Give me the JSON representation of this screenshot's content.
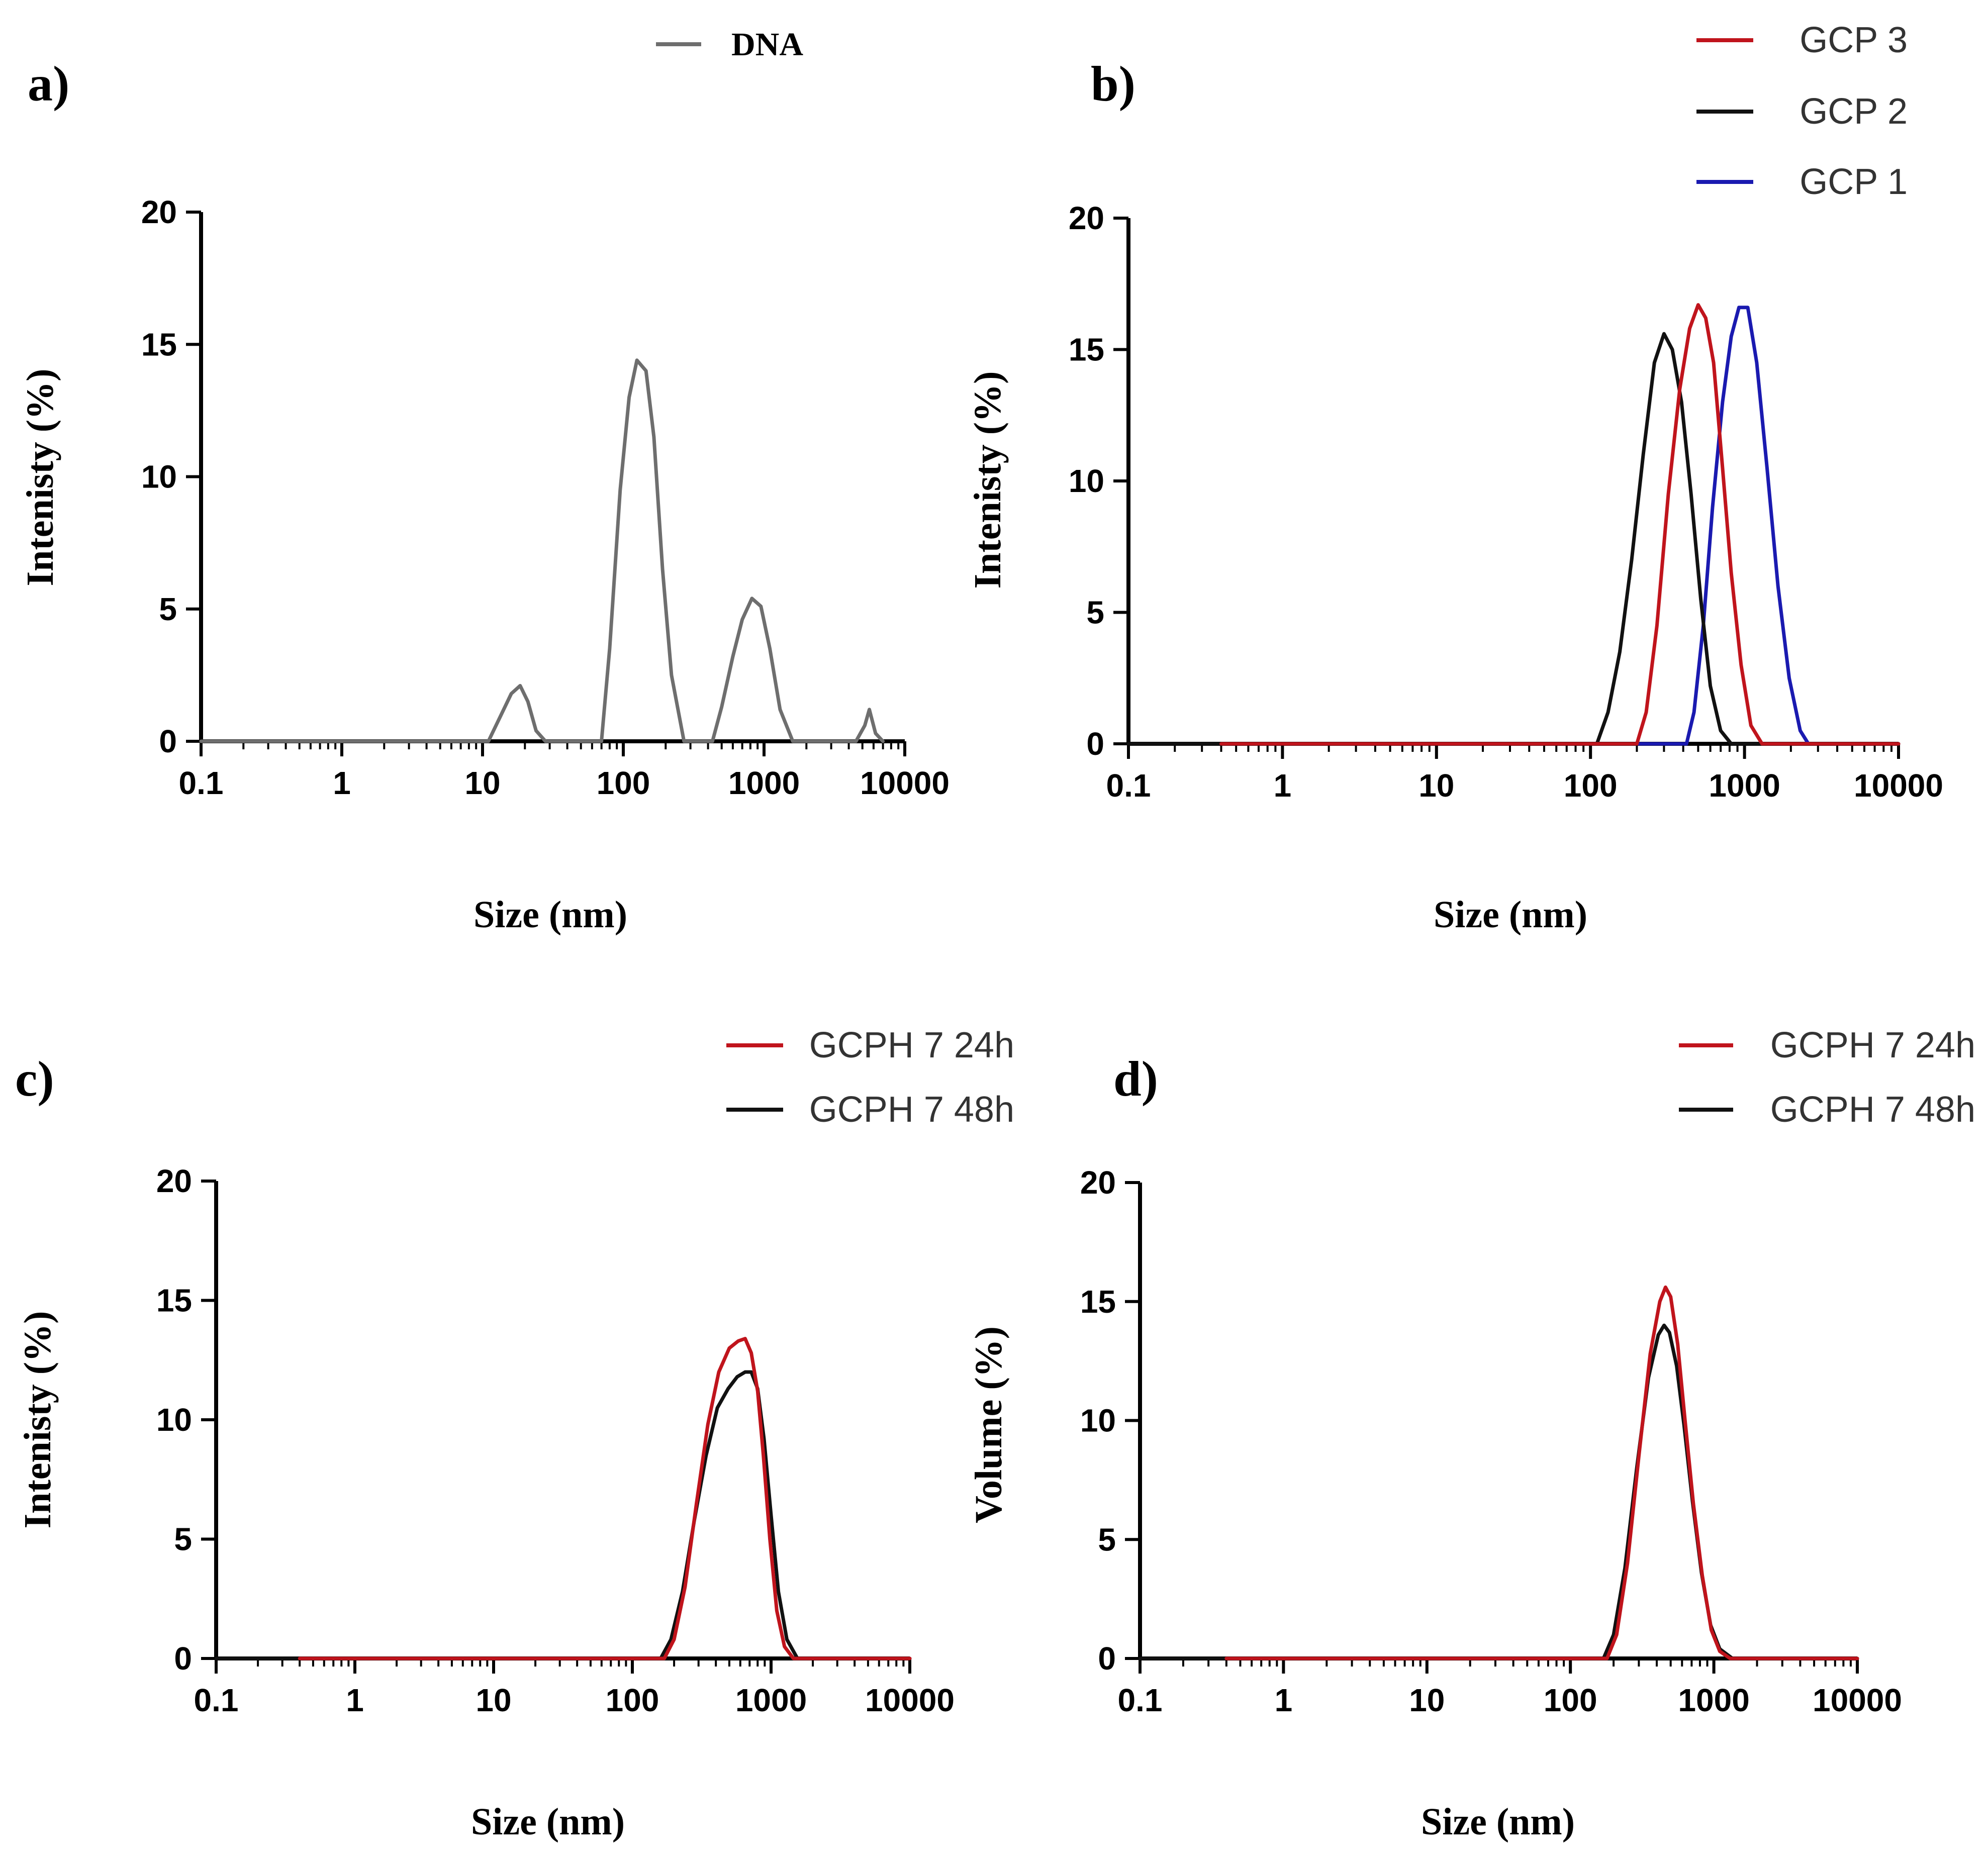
{
  "chart_data": [
    {
      "id": "a",
      "type": "line",
      "panel_label": "a)",
      "xlabel": "Size (nm)",
      "ylabel": "Intenisty (%)",
      "xscale": "log",
      "xlim": [
        0.1,
        10000
      ],
      "ylim": [
        0,
        20
      ],
      "xticks": [
        0.1,
        1,
        10,
        100,
        1000,
        10000
      ],
      "xtick_labels": [
        "0.1",
        "1",
        "10",
        "100",
        "1000",
        "10000"
      ],
      "yticks": [
        0,
        5,
        10,
        15,
        20
      ],
      "ytick_labels": [
        "0",
        "5",
        "10",
        "15",
        "20"
      ],
      "legend_position": "top",
      "legend_font": "serif",
      "series": [
        {
          "name": "DNA",
          "color": "#6e6e6e",
          "x": [
            0.1,
            11,
            13,
            16,
            18.5,
            21,
            24,
            28,
            70,
            80,
            95,
            110,
            125,
            145,
            165,
            190,
            220,
            270,
            300,
            430,
            500,
            600,
            700,
            820,
            950,
            1100,
            1300,
            1600,
            1800,
            4500,
            5200,
            5600,
            6200,
            7000
          ],
          "y": [
            0,
            0,
            0.8,
            1.8,
            2.1,
            1.5,
            0.4,
            0,
            0,
            3.5,
            9.5,
            13,
            14.4,
            14,
            11.5,
            6.5,
            2.5,
            0,
            0,
            0,
            1.3,
            3.2,
            4.6,
            5.4,
            5.1,
            3.5,
            1.2,
            0,
            0,
            0,
            0.6,
            1.2,
            0.3,
            0
          ]
        }
      ]
    },
    {
      "id": "b",
      "type": "line",
      "panel_label": "b)",
      "xlabel": "Size (nm)",
      "ylabel": "Intenisty (%)",
      "xscale": "log",
      "xlim": [
        0.1,
        10000
      ],
      "ylim": [
        0,
        20
      ],
      "xticks": [
        0.1,
        1,
        10,
        100,
        1000,
        10000
      ],
      "xtick_labels": [
        "0.1",
        "1",
        "10",
        "100",
        "1000",
        "10000"
      ],
      "yticks": [
        0,
        5,
        10,
        15,
        20
      ],
      "ytick_labels": [
        "0",
        "5",
        "10",
        "15",
        "20"
      ],
      "legend_position": "top-right",
      "legend_font": "sans",
      "series": [
        {
          "name": "GCP 3",
          "color": "#c0141c",
          "x": [
            0.4,
            200,
            230,
            270,
            320,
            380,
            440,
            500,
            560,
            630,
            720,
            820,
            950,
            1100,
            1300,
            10000
          ],
          "y": [
            0,
            0,
            1.2,
            4.5,
            9.5,
            13.5,
            15.8,
            16.7,
            16.2,
            14.5,
            10.5,
            6.5,
            3,
            0.7,
            0,
            0
          ]
        },
        {
          "name": "GCP 2",
          "color": "#111111",
          "x": [
            0.1,
            110,
            130,
            155,
            185,
            220,
            260,
            300,
            340,
            390,
            450,
            520,
            600,
            700,
            820,
            10000
          ],
          "y": [
            0,
            0,
            1.2,
            3.5,
            7,
            11,
            14.5,
            15.6,
            15,
            13,
            9.5,
            5.5,
            2.2,
            0.5,
            0,
            0
          ]
        },
        {
          "name": "GCP 1",
          "color": "#1a1ab0",
          "x": [
            0.4,
            420,
            470,
            540,
            620,
            720,
            820,
            920,
            1050,
            1200,
            1400,
            1650,
            1950,
            2300,
            2600,
            10000
          ],
          "y": [
            0,
            0,
            1.2,
            4.5,
            9,
            13,
            15.5,
            16.6,
            16.6,
            14.5,
            10.5,
            6,
            2.5,
            0.5,
            0,
            0
          ]
        }
      ]
    },
    {
      "id": "c",
      "type": "line",
      "panel_label": "c)",
      "xlabel": "Size (nm)",
      "ylabel": "Intenisty (%)",
      "xscale": "log",
      "xlim": [
        0.1,
        10000
      ],
      "ylim": [
        0,
        20
      ],
      "xticks": [
        0.1,
        1,
        10,
        100,
        1000,
        10000
      ],
      "xtick_labels": [
        "0.1",
        "1",
        "10",
        "100",
        "1000",
        "10000"
      ],
      "yticks": [
        0,
        5,
        10,
        15,
        20
      ],
      "ytick_labels": [
        "0",
        "5",
        "10",
        "15",
        "20"
      ],
      "legend_position": "top-right",
      "legend_font": "sans",
      "series": [
        {
          "name": "GCPH 7 24h",
          "color": "#c0141c",
          "x": [
            0.4,
            170,
            200,
            240,
            290,
            350,
            420,
            500,
            580,
            650,
            720,
            800,
            880,
            980,
            1100,
            1250,
            1450,
            10000
          ],
          "y": [
            0,
            0,
            0.8,
            3,
            6.5,
            9.8,
            12,
            13,
            13.3,
            13.4,
            12.8,
            11.2,
            8.5,
            5,
            2,
            0.5,
            0,
            0
          ]
        },
        {
          "name": "GCPH 7 48h",
          "color": "#111111",
          "x": [
            0.1,
            160,
            190,
            230,
            280,
            340,
            410,
            490,
            570,
            650,
            720,
            800,
            890,
            1000,
            1130,
            1300,
            1550,
            10000
          ],
          "y": [
            0,
            0,
            0.8,
            2.8,
            5.8,
            8.5,
            10.5,
            11.3,
            11.8,
            12,
            12,
            11.3,
            9.2,
            6,
            2.8,
            0.8,
            0,
            0
          ]
        }
      ]
    },
    {
      "id": "d",
      "type": "line",
      "panel_label": "d)",
      "xlabel": "Size (nm)",
      "ylabel": "Volume (%)",
      "xscale": "log",
      "xlim": [
        0.1,
        10000
      ],
      "ylim": [
        0,
        20
      ],
      "xticks": [
        0.1,
        1,
        10,
        100,
        1000,
        10000
      ],
      "xtick_labels": [
        "0.1",
        "1",
        "10",
        "100",
        "1000",
        "10000"
      ],
      "yticks": [
        0,
        5,
        10,
        15,
        20
      ],
      "ytick_labels": [
        "0",
        "5",
        "10",
        "15",
        "20"
      ],
      "legend_position": "top-right",
      "legend_font": "sans",
      "series": [
        {
          "name": "GCPH 7 24h",
          "color": "#c0141c",
          "x": [
            0.4,
            180,
            210,
            250,
            300,
            360,
            420,
            460,
            500,
            560,
            630,
            720,
            830,
            960,
            1100,
            1300,
            10000
          ],
          "y": [
            0,
            0,
            1,
            4,
            8.5,
            12.8,
            15,
            15.6,
            15.2,
            13.2,
            10,
            6.5,
            3.5,
            1.2,
            0.3,
            0,
            0
          ]
        },
        {
          "name": "GCPH 7 48h",
          "color": "#111111",
          "x": [
            0.1,
            170,
            200,
            240,
            290,
            350,
            410,
            450,
            490,
            550,
            620,
            710,
            820,
            950,
            1100,
            1350,
            10000
          ],
          "y": [
            0,
            0,
            1,
            3.8,
            8,
            11.8,
            13.6,
            14,
            13.7,
            12.3,
            9.8,
            6.6,
            3.6,
            1.4,
            0.4,
            0,
            0
          ]
        }
      ]
    }
  ]
}
